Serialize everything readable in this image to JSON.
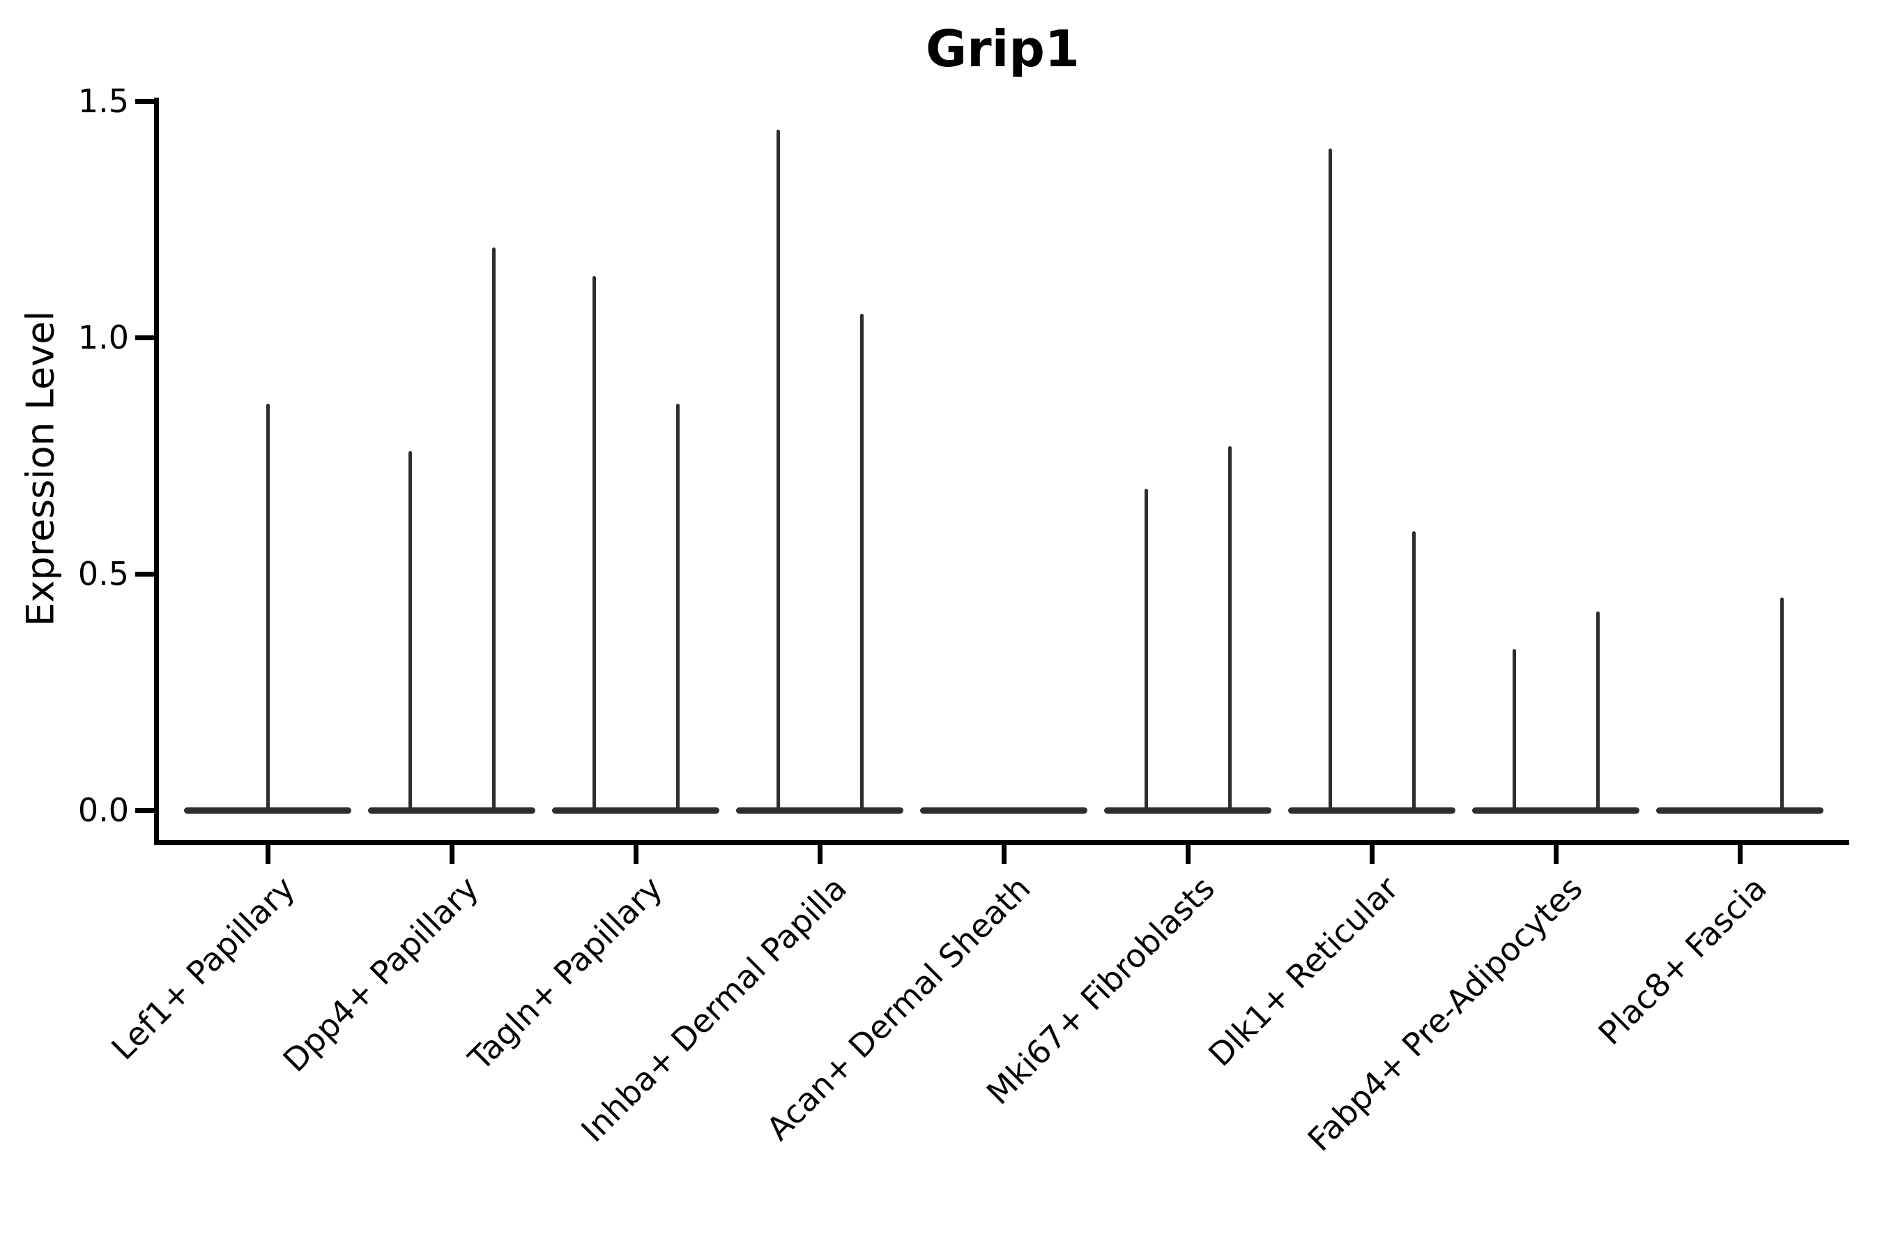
{
  "chart_data": {
    "type": "violin",
    "title": "Grip1",
    "ylabel": "Expression Level",
    "xlabel": "",
    "ylim": [
      0,
      1.5
    ],
    "grid": false,
    "legend_position": "none",
    "yticks": [
      {
        "label": "0.0",
        "value": 0.0
      },
      {
        "label": "0.5",
        "value": 0.5
      },
      {
        "label": "1.0",
        "value": 1.0
      },
      {
        "label": "1.5",
        "value": 1.5
      }
    ],
    "categories": [
      "Lef1+ Papillary",
      "Dpp4+ Papillary",
      "Tagln+ Papillary",
      "Inhba+ Dermal Papilla",
      "Acan+ Dermal Sheath",
      "Mki67+ Fibroblasts",
      "Dlk1+ Reticular",
      "Fabp4+ Pre-Adipocytes",
      "Plac8+ Fascia"
    ],
    "violins": [
      {
        "category": "Lef1+ Papillary",
        "body_min": 0,
        "spikes": [
          {
            "pos": "center",
            "max": 0.86
          }
        ]
      },
      {
        "category": "Dpp4+ Papillary",
        "body_min": 0,
        "spikes": [
          {
            "pos": "left",
            "max": 0.76
          },
          {
            "pos": "right",
            "max": 1.19
          }
        ]
      },
      {
        "category": "Tagln+ Papillary",
        "body_min": 0,
        "spikes": [
          {
            "pos": "left",
            "max": 1.13
          },
          {
            "pos": "right",
            "max": 0.86
          }
        ]
      },
      {
        "category": "Inhba+ Dermal Papilla",
        "body_min": 0,
        "spikes": [
          {
            "pos": "left",
            "max": 1.44
          },
          {
            "pos": "right",
            "max": 1.05
          }
        ]
      },
      {
        "category": "Acan+ Dermal Sheath",
        "body_min": 0,
        "spikes": []
      },
      {
        "category": "Mki67+ Fibroblasts",
        "body_min": 0,
        "spikes": [
          {
            "pos": "left",
            "max": 0.68
          },
          {
            "pos": "right",
            "max": 0.77
          }
        ]
      },
      {
        "category": "Dlk1+ Reticular",
        "body_min": 0,
        "spikes": [
          {
            "pos": "left",
            "max": 1.4
          },
          {
            "pos": "right",
            "max": 0.59
          }
        ]
      },
      {
        "category": "Fabp4+ Pre-Adipocytes",
        "body_min": 0,
        "spikes": [
          {
            "pos": "left",
            "max": 0.34
          },
          {
            "pos": "right",
            "max": 0.42
          }
        ]
      },
      {
        "category": "Plac8+ Fascia",
        "body_min": 0,
        "spikes": [
          {
            "pos": "right",
            "max": 0.45
          }
        ]
      }
    ],
    "colors": {
      "violin_ink": "#2e2e2e",
      "axis_ink": "#000000",
      "background": "#ffffff"
    }
  }
}
